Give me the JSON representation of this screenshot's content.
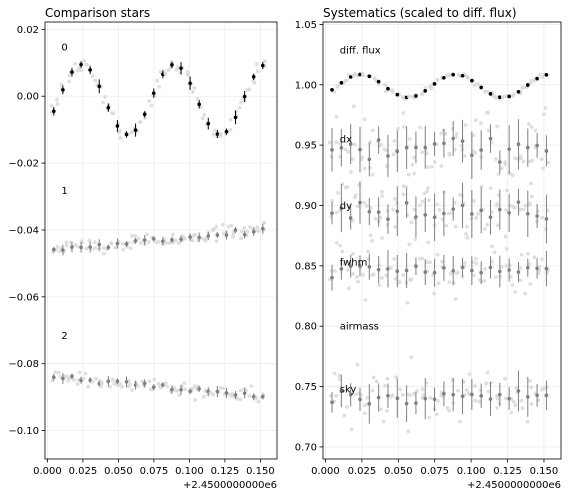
{
  "chart_data": [
    {
      "type": "scatter",
      "title": "Comparison stars",
      "xlim": [
        -0.0017,
        0.1617
      ],
      "ylim": [
        -0.1085,
        0.0222
      ],
      "xticks": [
        0.0,
        0.025,
        0.05,
        0.075,
        0.1,
        0.125,
        0.15
      ],
      "xtick_labels": [
        "0.000",
        "0.025",
        "0.050",
        "0.075",
        "0.100",
        "0.125",
        "0.150"
      ],
      "yticks": [
        0.02,
        0.0,
        -0.02,
        -0.04,
        -0.06,
        -0.08,
        -0.1
      ],
      "ytick_labels": [
        "0.02",
        "0.00",
        "−0.02",
        "−0.04",
        "−0.06",
        "−0.08",
        "−0.10"
      ],
      "x_offset_label": "+2.4500000000e6",
      "grid": true,
      "annotations": [
        {
          "text": "0",
          "x": 0.0098,
          "y": 0.0147
        },
        {
          "text": "1",
          "x": 0.0098,
          "y": -0.0282
        },
        {
          "text": "2",
          "x": 0.0098,
          "y": -0.0715
        }
      ],
      "series": [
        {
          "color": "#000000",
          "kind": "sine",
          "mean": -0.001,
          "amp": 0.0105,
          "period": 0.065,
          "phase": 0.008,
          "err": 0.0015
        },
        {
          "color": "#7f7f7f",
          "kind": "linear",
          "y0": -0.046,
          "slope": 0.04,
          "err": 0.0012
        },
        {
          "color": "#7f7f7f",
          "kind": "linear",
          "y0": -0.0838,
          "slope": -0.042,
          "err": 0.0012
        }
      ],
      "n_bins": 47,
      "x_start": 0.0045,
      "x_step": 0.0032
    },
    {
      "type": "scatter",
      "title": "Systematics (scaled to diff. flux)",
      "xlim": [
        -0.0017,
        0.1617
      ],
      "ylim": [
        0.69,
        1.052
      ],
      "xticks": [
        0.0,
        0.025,
        0.05,
        0.075,
        0.1,
        0.125,
        0.15
      ],
      "xtick_labels": [
        "0.000",
        "0.025",
        "0.050",
        "0.075",
        "0.100",
        "0.125",
        "0.150"
      ],
      "yticks": [
        1.05,
        1.0,
        0.95,
        0.9,
        0.85,
        0.8,
        0.75,
        0.7
      ],
      "ytick_labels": [
        "1.05",
        "1.00",
        "0.95",
        "0.90",
        "0.85",
        "0.80",
        "0.75",
        "0.70"
      ],
      "x_offset_label": "+2.4500000000e6",
      "grid": true,
      "annotations": [
        {
          "text": "diff. flux",
          "x": 0.0098,
          "y": 1.029
        },
        {
          "text": "dx",
          "x": 0.0098,
          "y": 0.955
        },
        {
          "text": "dy",
          "x": 0.0098,
          "y": 0.9
        },
        {
          "text": "fwhm",
          "x": 0.0098,
          "y": 0.853
        },
        {
          "text": "airmass",
          "x": 0.0098,
          "y": 0.8
        },
        {
          "text": "sky",
          "x": 0.0098,
          "y": 0.748
        }
      ],
      "series": [
        {
          "color": "#000000",
          "kind": "sine",
          "mean": 0.999,
          "amp": 0.0095,
          "period": 0.065,
          "phase": 0.008,
          "err": 0.0012
        },
        {
          "color": "#7f7f7f",
          "kind": "noisy",
          "y0": 0.948,
          "scatter": 0.018,
          "err": 0.015
        },
        {
          "color": "#7f7f7f",
          "kind": "noisy",
          "y0": 0.895,
          "scatter": 0.015,
          "err": 0.015
        },
        {
          "color": "#7f7f7f",
          "kind": "noisy",
          "y0": 0.847,
          "scatter": 0.012,
          "err": 0.012
        },
        {
          "color": "#7f7f7f",
          "kind": "noisy",
          "y0": 0.742,
          "scatter": 0.013,
          "err": 0.013
        }
      ],
      "n_bins": 47,
      "x_start": 0.0045,
      "x_step": 0.0032
    }
  ]
}
